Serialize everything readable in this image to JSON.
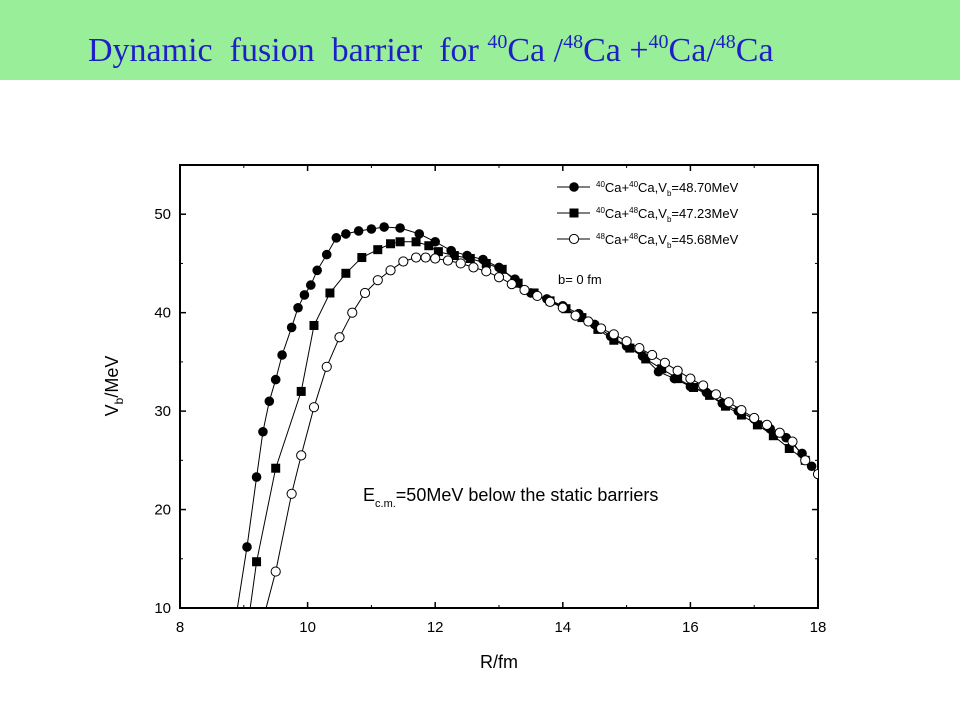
{
  "header": {
    "title_parts": [
      "Dynamic  fusion  barrier  for ",
      "40",
      "Ca /",
      "48",
      "Ca +",
      "40",
      "Ca/",
      "48",
      "Ca"
    ],
    "background": "#99ee99",
    "title_color": "#1f1fc8"
  },
  "chart_data": {
    "type": "line",
    "title": "",
    "xlabel": "R/fm",
    "ylabel": "V",
    "ylabel_sub": "b",
    "ylabel_suffix": "/MeV",
    "xlim": [
      8,
      18
    ],
    "ylim": [
      10,
      55
    ],
    "xticks": [
      8,
      10,
      12,
      14,
      16,
      18
    ],
    "yticks": [
      10,
      20,
      30,
      40,
      50
    ],
    "grid": false,
    "legend_position": "top-right",
    "annotation": {
      "main": "E",
      "sub": "c.m.",
      "rest": "=50MeV below the static barriers"
    },
    "legend_note": "b= 0 fm",
    "series": [
      {
        "name": "40Ca+40Ca,Vb=48.70MeV",
        "legend": {
          "a": "40",
          "b": "Ca+",
          "c": "40",
          "d": "Ca,V",
          "e": "b",
          "f": "=48.70MeV"
        },
        "marker": "filled-circle",
        "x": [
          8.9,
          9.05,
          9.2,
          9.3,
          9.4,
          9.5,
          9.6,
          9.75,
          9.85,
          9.95,
          10.05,
          10.15,
          10.3,
          10.45,
          10.6,
          10.8,
          11.0,
          11.2,
          11.45,
          11.75,
          12.0,
          12.25,
          12.5,
          12.75,
          13.0,
          13.25,
          13.5,
          13.75,
          14.0,
          14.25,
          14.5,
          14.75,
          15.0,
          15.25,
          15.5,
          15.75,
          16.0,
          16.25,
          16.5,
          16.75,
          17.0,
          17.25,
          17.5,
          17.75,
          17.9
        ],
        "y": [
          10,
          16.2,
          23.3,
          27.9,
          31.0,
          33.2,
          35.7,
          38.5,
          40.5,
          41.8,
          42.8,
          44.3,
          45.9,
          47.6,
          48.0,
          48.3,
          48.5,
          48.7,
          48.6,
          48.0,
          47.2,
          46.3,
          45.8,
          45.4,
          44.6,
          43.4,
          42.0,
          41.4,
          40.7,
          39.9,
          38.8,
          37.6,
          36.6,
          35.6,
          34.0,
          33.3,
          32.5,
          31.9,
          30.8,
          30.0,
          29.2,
          28.2,
          27.3,
          25.7,
          24.4
        ]
      },
      {
        "name": "40Ca+48Ca,Vb=47.23MeV",
        "legend": {
          "a": "40",
          "b": "Ca+",
          "c": "48",
          "d": "Ca,V",
          "e": "b",
          "f": "=47.23MeV"
        },
        "marker": "filled-square",
        "x": [
          9.1,
          9.2,
          9.5,
          9.9,
          10.1,
          10.35,
          10.6,
          10.85,
          11.1,
          11.3,
          11.45,
          11.7,
          11.9,
          12.05,
          12.3,
          12.55,
          12.8,
          13.05,
          13.3,
          13.55,
          13.8,
          14.05,
          14.3,
          14.55,
          14.8,
          15.05,
          15.3,
          15.55,
          15.8,
          16.05,
          16.3,
          16.55,
          16.8,
          17.05,
          17.3,
          17.55,
          17.8
        ],
        "y": [
          10,
          14.7,
          24.2,
          32.0,
          38.7,
          42.0,
          44.0,
          45.6,
          46.4,
          47.0,
          47.2,
          47.2,
          46.8,
          46.2,
          45.8,
          45.5,
          45.0,
          44.4,
          43.0,
          42.0,
          41.2,
          40.4,
          39.5,
          38.3,
          37.2,
          36.4,
          35.3,
          34.3,
          33.3,
          32.4,
          31.6,
          30.5,
          29.6,
          28.6,
          27.5,
          26.2,
          25.0
        ]
      },
      {
        "name": "48Ca+48Ca,Vb=45.68MeV",
        "legend": {
          "a": "48",
          "b": "Ca+",
          "c": "48",
          "d": "Ca,V",
          "e": "b",
          "f": "=45.68MeV"
        },
        "marker": "open-circle",
        "x": [
          9.35,
          9.5,
          9.75,
          9.9,
          10.1,
          10.3,
          10.5,
          10.7,
          10.9,
          11.1,
          11.3,
          11.5,
          11.7,
          11.85,
          12.0,
          12.2,
          12.4,
          12.6,
          12.8,
          13.0,
          13.2,
          13.4,
          13.6,
          13.8,
          14.0,
          14.2,
          14.4,
          14.6,
          14.8,
          15.0,
          15.2,
          15.4,
          15.6,
          15.8,
          16.0,
          16.2,
          16.4,
          16.6,
          16.8,
          17.0,
          17.2,
          17.4,
          17.6,
          17.8,
          18.0
        ],
        "y": [
          10,
          13.7,
          21.6,
          25.5,
          30.4,
          34.5,
          37.5,
          40.0,
          42.0,
          43.3,
          44.3,
          45.2,
          45.6,
          45.6,
          45.5,
          45.3,
          45.0,
          44.6,
          44.2,
          43.6,
          42.9,
          42.3,
          41.7,
          41.1,
          40.5,
          39.7,
          39.1,
          38.4,
          37.8,
          37.1,
          36.4,
          35.7,
          34.9,
          34.1,
          33.3,
          32.6,
          31.7,
          30.9,
          30.1,
          29.3,
          28.6,
          27.8,
          26.9,
          25.0,
          23.6
        ]
      }
    ]
  }
}
